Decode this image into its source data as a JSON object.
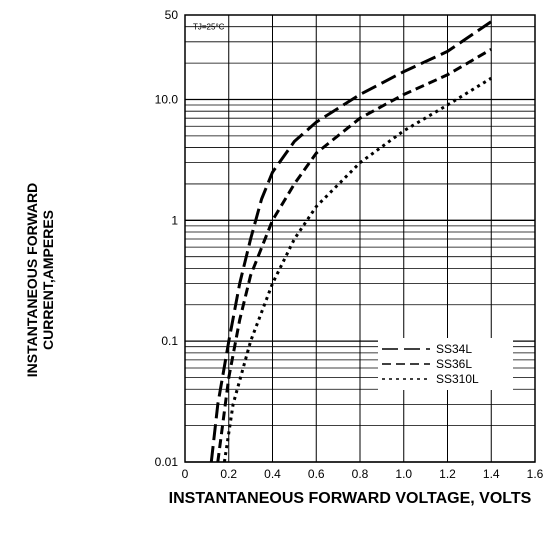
{
  "chart_data": {
    "type": "line",
    "x_axis": {
      "label": "INSTANTANEOUS FORWARD VOLTAGE, VOLTS",
      "range": [
        0,
        1.6
      ],
      "ticks": [
        0,
        0.2,
        0.4,
        0.6,
        0.8,
        1.0,
        1.2,
        1.4,
        1.6
      ],
      "tick_labels": [
        "0",
        "0.2",
        "0.4",
        "0.6",
        "0.8",
        "1.0",
        "1.2",
        "1.4",
        "1.6"
      ]
    },
    "y_axis": {
      "label_lines": [
        "INSTANTANEOUS FORWARD",
        "CURRENT,AMPERES"
      ],
      "scale": "log",
      "range": [
        0.01,
        50
      ],
      "ticks": [
        0.01,
        0.1,
        1,
        10,
        50
      ],
      "tick_labels": [
        "0.01",
        "0.1",
        "1",
        "10.0",
        "50"
      ]
    },
    "grid": true,
    "annotation": "TJ=25°C",
    "legend_position": "lower-right",
    "series": [
      {
        "name": "SS34L",
        "dash": "long",
        "x": [
          0.12,
          0.15,
          0.2,
          0.25,
          0.3,
          0.35,
          0.4,
          0.5,
          0.6,
          0.8,
          1.0,
          1.2,
          1.4
        ],
        "y": [
          0.01,
          0.03,
          0.1,
          0.3,
          0.7,
          1.5,
          2.5,
          4.5,
          6.5,
          11,
          17,
          25,
          44
        ]
      },
      {
        "name": "SS36L",
        "dash": "medium",
        "x": [
          0.15,
          0.2,
          0.25,
          0.3,
          0.4,
          0.5,
          0.6,
          0.8,
          1.0,
          1.2,
          1.4
        ],
        "y": [
          0.01,
          0.05,
          0.15,
          0.35,
          1.0,
          2.0,
          3.6,
          7,
          11,
          16,
          26
        ]
      },
      {
        "name": "SS310L",
        "dash": "short",
        "x": [
          0.18,
          0.22,
          0.3,
          0.4,
          0.5,
          0.6,
          0.8,
          1.0,
          1.2,
          1.4
        ],
        "y": [
          0.01,
          0.03,
          0.1,
          0.3,
          0.7,
          1.3,
          3.0,
          5.5,
          9,
          15
        ]
      }
    ]
  }
}
